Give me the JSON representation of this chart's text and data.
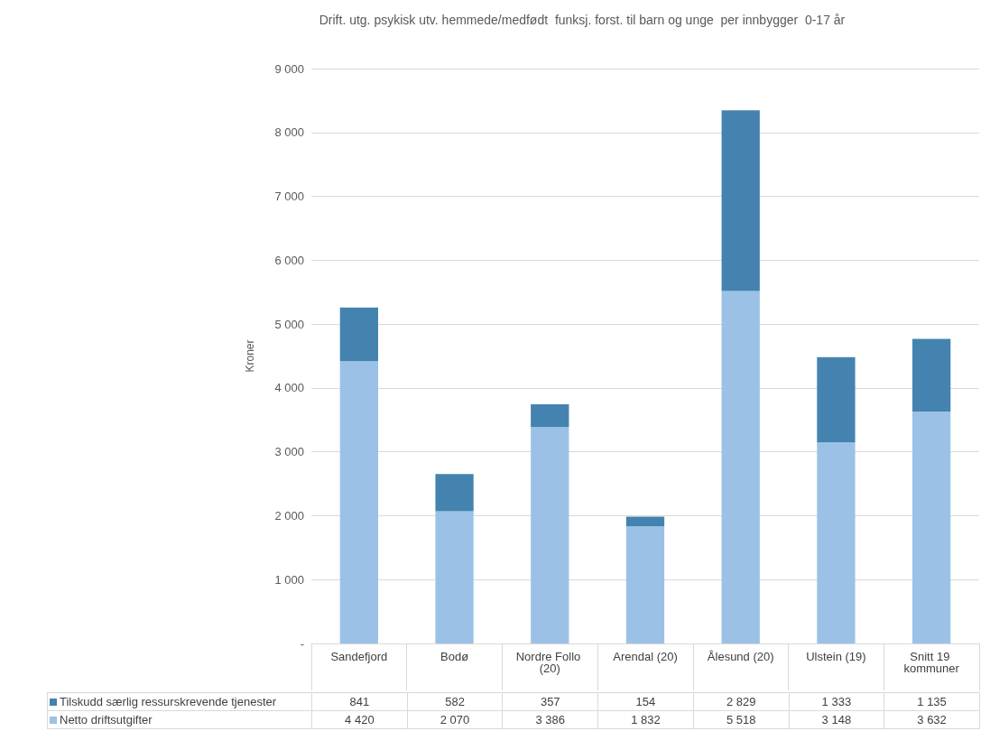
{
  "chart_data": {
    "type": "bar",
    "title": "Drift. utg. psykisk utv. hemmede/medfødt  funksj. forst. til barn og unge  per innbygger  0-17 år",
    "ylabel": "Kroner",
    "categories": [
      "Sandefjord",
      "Bodø",
      "Nordre Follo (20)",
      "Arendal (20)",
      "Ålesund (20)",
      "Ulstein (19)",
      "Snitt 19 kommuner"
    ],
    "series": [
      {
        "name": "Netto driftsutgifter",
        "color": "#9bc2e6",
        "values": [
          4420,
          2070,
          3386,
          1832,
          5518,
          3148,
          3632
        ]
      },
      {
        "name": "Tilskudd særlig ressurskrevende tjenester",
        "color": "#4483b0",
        "values": [
          841,
          582,
          357,
          154,
          2829,
          1333,
          1135
        ]
      }
    ],
    "stacked": true,
    "ylim": [
      0,
      9000
    ],
    "yticks": [
      {
        "value": 0,
        "label": "-"
      },
      {
        "value": 1000,
        "label": "1 000"
      },
      {
        "value": 2000,
        "label": "2 000"
      },
      {
        "value": 3000,
        "label": "3 000"
      },
      {
        "value": 4000,
        "label": "4 000"
      },
      {
        "value": 5000,
        "label": "5 000"
      },
      {
        "value": 6000,
        "label": "6 000"
      },
      {
        "value": 7000,
        "label": "7 000"
      },
      {
        "value": 8000,
        "label": "8 000"
      },
      {
        "value": 9000,
        "label": "9 000"
      }
    ],
    "grid": "y",
    "legend": "bottom",
    "data_labels": true
  }
}
